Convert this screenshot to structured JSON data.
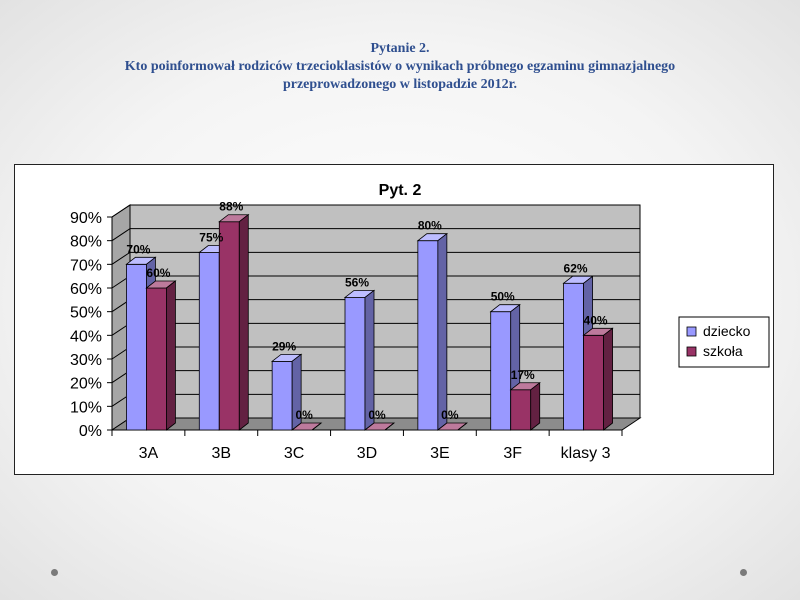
{
  "slide": {
    "question_label": "Pytanie 2.",
    "question_line1": "Kto poinformował rodziców trzecioklasistów o wynikach próbnego egzaminu gimnazjalnego",
    "question_line2": "przeprowadzonego w listopadzie 2012r."
  },
  "chart_data": {
    "type": "bar",
    "title": "Pyt. 2",
    "categories": [
      "3A",
      "3B",
      "3C",
      "3D",
      "3E",
      "3F",
      "klasy 3"
    ],
    "series": [
      {
        "name": "dziecko",
        "values": [
          70,
          75,
          29,
          56,
          80,
          50,
          62
        ],
        "color": "#9999ff"
      },
      {
        "name": "szkoła",
        "values": [
          60,
          88,
          0,
          0,
          0,
          17,
          40
        ],
        "color": "#993366"
      }
    ],
    "value_suffix": "%",
    "y_ticks": [
      "0%",
      "10%",
      "20%",
      "30%",
      "40%",
      "50%",
      "60%",
      "70%",
      "80%",
      "90%"
    ],
    "ylim": [
      0,
      90
    ],
    "grid": true,
    "legend_position": "right",
    "style": "3d-clustered-column",
    "wall_color": "#c0c0c0"
  }
}
